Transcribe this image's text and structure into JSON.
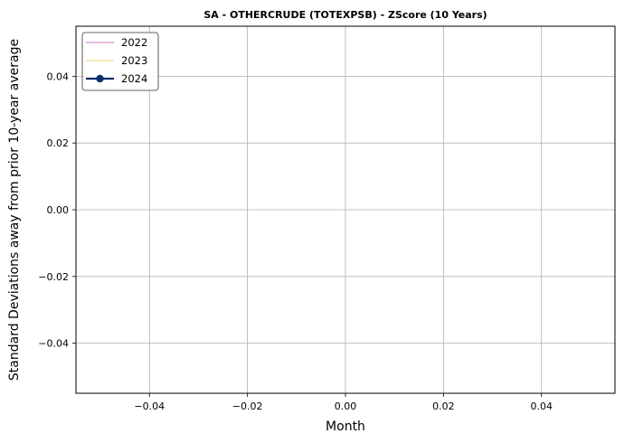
{
  "chart_data": {
    "type": "line",
    "title": "SA - OTHERCRUDE (TOTEXPSB) - ZScore (10 Years)",
    "xlabel": "Month",
    "ylabel": "Standard Deviations away from prior 10-year average",
    "xlim": [
      -0.055,
      0.055
    ],
    "ylim": [
      -0.055,
      0.055
    ],
    "x_ticks": [
      -0.04,
      -0.02,
      0.0,
      0.02,
      0.04
    ],
    "x_tick_labels": [
      "−0.04",
      "−0.02",
      "0.00",
      "0.02",
      "0.04"
    ],
    "y_ticks": [
      0.04,
      0.02,
      0.0,
      -0.02,
      -0.04
    ],
    "y_tick_labels": [
      "0.04",
      "0.02",
      "0.00",
      "−0.02",
      "−0.04"
    ],
    "grid": true,
    "legend_position": "top-left",
    "series": [
      {
        "name": "2022",
        "color": "#d8a6dc",
        "marker": "none",
        "values": []
      },
      {
        "name": "2023",
        "color": "#efe0a0",
        "marker": "none",
        "values": []
      },
      {
        "name": "2024",
        "color": "#0b2f6b",
        "marker": "circle",
        "values": []
      }
    ]
  }
}
